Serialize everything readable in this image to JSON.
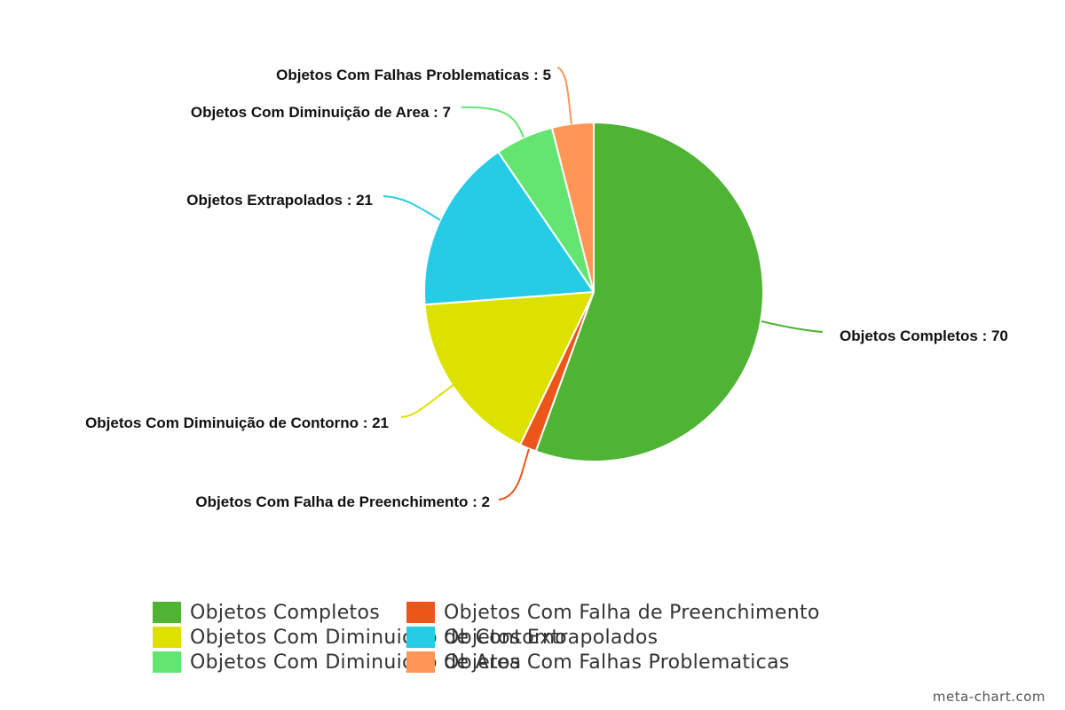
{
  "chart_data": {
    "type": "pie",
    "title": "",
    "label_separator": " : ",
    "slices": [
      {
        "label": "Objetos Completos",
        "value": 70,
        "color": "#4fb334"
      },
      {
        "label": "Objetos Com Falha de Preenchimento",
        "value": 2,
        "color": "#ec561b"
      },
      {
        "label": "Objetos Com Diminuição de Contorno",
        "value": 21,
        "color": "#dde100"
      },
      {
        "label": "Objetos Extrapolados",
        "value": 21,
        "color": "#26cce5"
      },
      {
        "label": "Objetos Com Diminuição de Area",
        "value": 7,
        "color": "#64e572"
      },
      {
        "label": "Objetos Com Falhas Problematicas",
        "value": 5,
        "color": "#ff9655"
      }
    ],
    "legend_position": "bottom"
  },
  "legend": {
    "rows": [
      [
        0,
        1
      ],
      [
        2,
        3
      ],
      [
        4,
        5
      ]
    ]
  },
  "watermark": "meta-chart.com"
}
